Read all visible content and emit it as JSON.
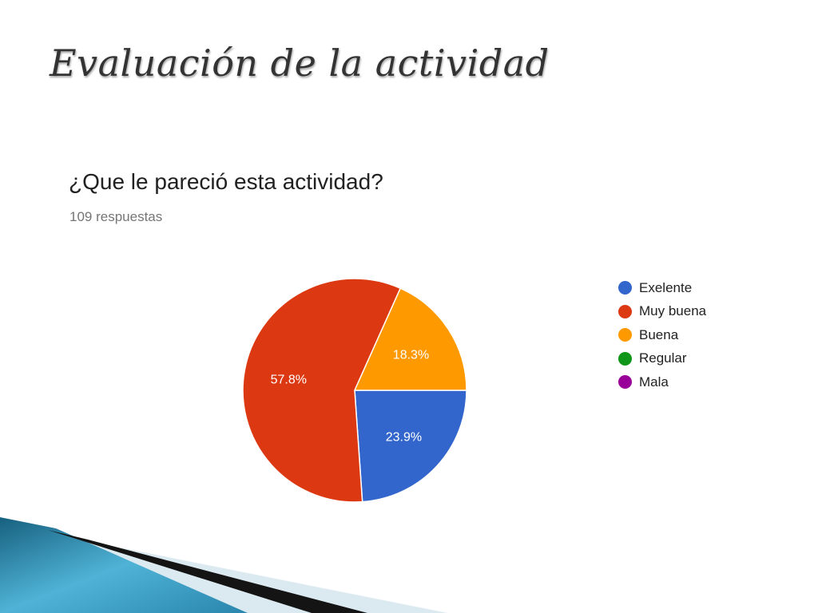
{
  "slide": {
    "title": "Evaluación de la actividad"
  },
  "chart_data": {
    "type": "pie",
    "title": "¿Que le pareció esta actividad?",
    "subtitle": "109 respuestas",
    "legend_position": "right",
    "slices": [
      {
        "label": "Exelente",
        "value": 23.9,
        "color": "#3366cc",
        "display_label": "23.9%"
      },
      {
        "label": "Muy buena",
        "value": 57.8,
        "color": "#dc3912",
        "display_label": "57.8%"
      },
      {
        "label": "Buena",
        "value": 18.3,
        "color": "#ff9900",
        "display_label": "18.3%"
      },
      {
        "label": "Regular",
        "value": 0,
        "color": "#109618",
        "display_label": ""
      },
      {
        "label": "Mala",
        "value": 0,
        "color": "#990099",
        "display_label": ""
      }
    ]
  },
  "colors": {
    "decor_blue_dark": "#1f6f93",
    "decor_blue_light": "#6fc3df",
    "decor_black": "#111111",
    "decor_pale": "#d8e7ee"
  }
}
